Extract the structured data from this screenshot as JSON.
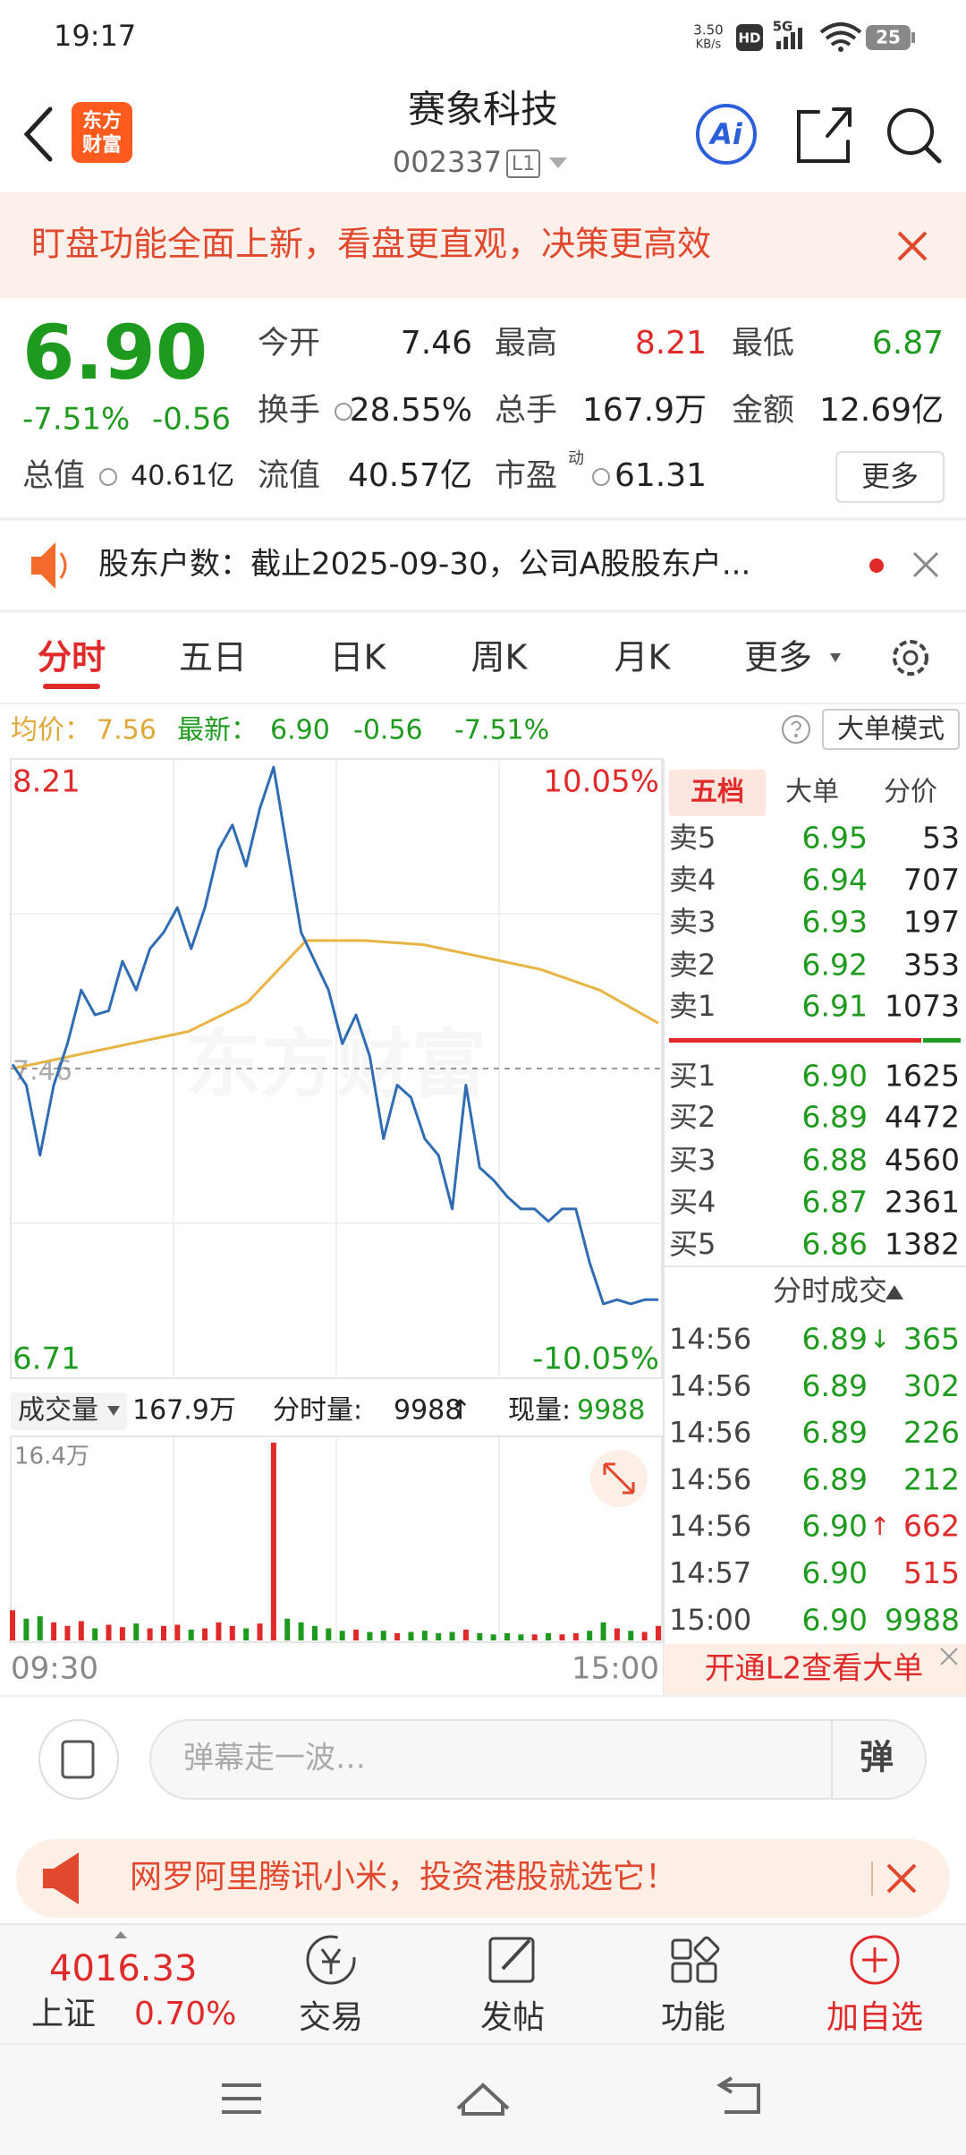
{
  "status_bar": {
    "time": "19:17",
    "net_speed": "3.50",
    "net_unit": "KB/s",
    "hd": "HD",
    "signal": "5G",
    "battery": "25"
  },
  "header": {
    "logo": [
      "东方",
      "财富"
    ],
    "title": "赛象科技",
    "code": "002337",
    "level": "L1",
    "ai_label": "Ai"
  },
  "banner": {
    "text": "盯盘功能全面上新，看盘更直观，决策更高效"
  },
  "quote": {
    "price": "6.90",
    "change_pct": "-7.51%",
    "change": "-0.56",
    "up_color": "#e02a2a",
    "down_color": "#1e9b1e",
    "flat_color": "#222222",
    "stats": [
      [
        {
          "label": "今开",
          "value": "7.46",
          "tone": "flat"
        },
        {
          "label": "最高",
          "value": "8.21",
          "tone": "up"
        },
        {
          "label": "最低",
          "value": "6.87",
          "tone": "down"
        }
      ],
      [
        {
          "label": "换手",
          "value": "28.55%",
          "tone": "flat",
          "info": true
        },
        {
          "label": "总手",
          "value": "167.9万",
          "tone": "flat"
        },
        {
          "label": "金额",
          "value": "12.69亿",
          "tone": "flat"
        }
      ],
      [
        {
          "label": "总值",
          "value": "40.61亿",
          "tone": "flat",
          "info": true,
          "small": true
        },
        {
          "label": "流值",
          "value": "40.57亿",
          "tone": "flat"
        },
        {
          "label": "市盈",
          "sup": "动",
          "value": "61.31",
          "tone": "flat",
          "info": true
        }
      ]
    ],
    "more_button": "更多"
  },
  "notice": {
    "text": "股东户数：截止2025-09-30，公司A股股东户..."
  },
  "tabs": {
    "items": [
      "分时",
      "五日",
      "日K",
      "周K",
      "月K",
      "更多"
    ],
    "active": 0
  },
  "info": {
    "avg_label": "均价：",
    "avg": "7.56",
    "latest_label": "最新：",
    "latest": "6.90",
    "change": "-0.56",
    "change_pct": "-7.51%",
    "mode_button": "大单模式"
  },
  "intraday": {
    "watermark": "东方财富",
    "ylim": [
      6.71,
      8.21
    ],
    "prev_close": 7.46,
    "pct_top": "10.05%",
    "pct_bottom": "-10.05%",
    "price_color": "#2f6cb3",
    "avg_color": "#e8b443",
    "price": [
      7.47,
      7.42,
      7.25,
      7.42,
      7.52,
      7.65,
      7.59,
      7.6,
      7.72,
      7.65,
      7.75,
      7.79,
      7.85,
      7.75,
      7.85,
      7.99,
      8.05,
      7.95,
      8.09,
      8.19,
      7.99,
      7.79,
      7.72,
      7.65,
      7.52,
      7.59,
      7.49,
      7.29,
      7.42,
      7.39,
      7.29,
      7.25,
      7.12,
      7.42,
      7.22,
      7.19,
      7.15,
      7.12,
      7.12,
      7.09,
      7.12,
      7.12,
      6.99,
      6.89,
      6.9,
      6.89,
      6.9,
      6.9
    ],
    "avg": [
      7.46,
      7.49,
      7.52,
      7.55,
      7.62,
      7.77,
      7.77,
      7.76,
      7.73,
      7.7,
      7.65,
      7.57
    ],
    "volume": [
      2.5,
      1.8,
      2.0,
      1.5,
      1.2,
      1.6,
      1.0,
      1.3,
      1.1,
      1.4,
      1.0,
      1.2,
      1.3,
      0.9,
      1.0,
      1.5,
      1.2,
      1.0,
      1.4,
      16.4,
      1.8,
      1.5,
      1.2,
      1.0,
      0.8,
      0.9,
      0.7,
      0.8,
      0.6,
      0.7,
      0.8,
      0.6,
      0.7,
      0.9,
      0.6,
      0.5,
      0.6,
      0.5,
      0.5,
      0.6,
      0.5,
      0.6,
      0.8,
      1.5,
      1.0,
      0.8,
      0.7,
      1.2
    ],
    "volume_max": {
      "value": 16.4,
      "label": "16.4万"
    },
    "time_start": "09:30",
    "time_end": "15:00"
  },
  "volume_header": {
    "label": "成交量",
    "total": "167.9万",
    "period_label": "分时量:",
    "period": "9988",
    "period_arrow": "↑",
    "now_label": "现量:",
    "now": "9988"
  },
  "order_book": {
    "tabs": [
      "五档",
      "大单",
      "分价"
    ],
    "asks": [
      {
        "label": "卖5",
        "price": "6.95",
        "volume": "53"
      },
      {
        "label": "卖4",
        "price": "6.94",
        "volume": "707"
      },
      {
        "label": "卖3",
        "price": "6.93",
        "volume": "197"
      },
      {
        "label": "卖2",
        "price": "6.92",
        "volume": "353"
      },
      {
        "label": "卖1",
        "price": "6.91",
        "volume": "1073"
      }
    ],
    "bids": [
      {
        "label": "买1",
        "price": "6.90",
        "volume": "1625"
      },
      {
        "label": "买2",
        "price": "6.89",
        "volume": "4472"
      },
      {
        "label": "买3",
        "price": "6.88",
        "volume": "4560"
      },
      {
        "label": "买4",
        "price": "6.87",
        "volume": "2361"
      },
      {
        "label": "买5",
        "price": "6.86",
        "volume": "1382"
      }
    ]
  },
  "trades": {
    "title": "分时成交",
    "rows": [
      {
        "time": "14:56",
        "price": "6.89",
        "arrow": "↓",
        "volume": "365",
        "side": "down"
      },
      {
        "time": "14:56",
        "price": "6.89",
        "volume": "302",
        "side": "down"
      },
      {
        "time": "14:56",
        "price": "6.89",
        "volume": "226",
        "side": "down"
      },
      {
        "time": "14:56",
        "price": "6.89",
        "volume": "212",
        "side": "down"
      },
      {
        "time": "14:56",
        "price": "6.90",
        "arrow": "↑",
        "volume": "662",
        "side": "up"
      },
      {
        "time": "14:57",
        "price": "6.90",
        "volume": "515",
        "side": "up"
      },
      {
        "time": "15:00",
        "price": "6.90",
        "volume": "9988",
        "side": "down"
      }
    ]
  },
  "l2_promo": "开通L2查看大单",
  "comment": {
    "placeholder": "弹幕走一波…",
    "button": "弹"
  },
  "ad": {
    "text": "网罗阿里腾讯小米，投资港股就选它！"
  },
  "bottom_nav": {
    "index_value": "4016.33",
    "index_name": "上证",
    "index_change": "0.70%",
    "items": [
      "交易",
      "发帖",
      "功能",
      "加自选"
    ]
  }
}
